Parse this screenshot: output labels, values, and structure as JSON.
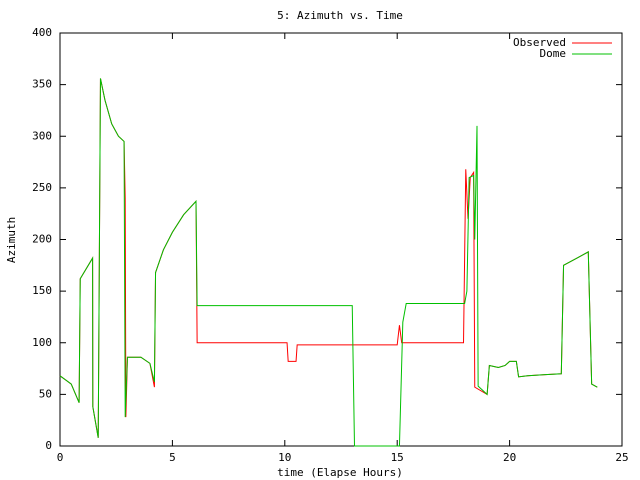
{
  "chart_data": {
    "type": "line",
    "title": "5: Azimuth vs. Time",
    "xlabel": "time (Elapse Hours)",
    "ylabel": "Azimuth",
    "xlim": [
      0,
      25
    ],
    "xticks": [
      0,
      5,
      10,
      15,
      20,
      25
    ],
    "ylim": [
      0,
      400
    ],
    "yticks": [
      0,
      50,
      100,
      150,
      200,
      250,
      300,
      350,
      400
    ],
    "legend": "top-right",
    "series": [
      {
        "name": "Observed",
        "color": "#ff0000",
        "x": [
          0,
          0.5,
          0.85,
          0.9,
          1.45,
          1.46,
          1.7,
          1.8,
          2.0,
          2.3,
          2.6,
          2.85,
          2.9,
          2.93,
          3.0,
          3.6,
          4.0,
          4.2,
          4.25,
          4.6,
          5.0,
          5.5,
          6.05,
          6.1,
          10.1,
          10.15,
          10.5,
          10.55,
          15.0,
          15.1,
          15.2,
          17.95,
          18.05,
          18.15,
          18.25,
          18.4,
          18.45,
          19.0,
          19.1,
          19.5,
          19.8,
          20.0,
          20.3,
          20.4,
          20.8,
          21.5,
          22.3,
          22.4,
          23.0,
          23.5,
          23.65,
          23.9
        ],
        "values": [
          68,
          60,
          42,
          162,
          182,
          38,
          8,
          356,
          335,
          312,
          300,
          295,
          240,
          28,
          86,
          86,
          80,
          57,
          168,
          190,
          207,
          224,
          237,
          100,
          100,
          82,
          82,
          98,
          98,
          117,
          100,
          100,
          268,
          220,
          260,
          265,
          57,
          50,
          78,
          76,
          78,
          82,
          82,
          67,
          68,
          69,
          70,
          175,
          182,
          188,
          60,
          57
        ]
      },
      {
        "name": "Dome",
        "color": "#00c000",
        "x": [
          0,
          0.5,
          0.85,
          0.9,
          1.45,
          1.46,
          1.7,
          1.8,
          2.0,
          2.3,
          2.6,
          2.85,
          2.9,
          3.0,
          3.6,
          4.0,
          4.2,
          4.25,
          4.6,
          5.0,
          5.5,
          6.05,
          6.1,
          13.0,
          13.1,
          15.1,
          15.25,
          15.4,
          18.0,
          18.1,
          18.2,
          18.4,
          18.45,
          18.55,
          18.6,
          19.0,
          19.1,
          19.5,
          19.8,
          20.0,
          20.3,
          20.4,
          20.8,
          21.5,
          22.3,
          22.4,
          23.0,
          23.5,
          23.65,
          23.9
        ],
        "values": [
          68,
          60,
          42,
          162,
          182,
          38,
          8,
          356,
          335,
          312,
          300,
          295,
          28,
          86,
          86,
          80,
          62,
          168,
          190,
          207,
          224,
          237,
          136,
          136,
          0,
          0,
          120,
          138,
          138,
          150,
          260,
          262,
          200,
          310,
          58,
          50,
          78,
          76,
          78,
          82,
          82,
          67,
          68,
          69,
          70,
          175,
          182,
          188,
          60,
          57
        ]
      }
    ]
  }
}
